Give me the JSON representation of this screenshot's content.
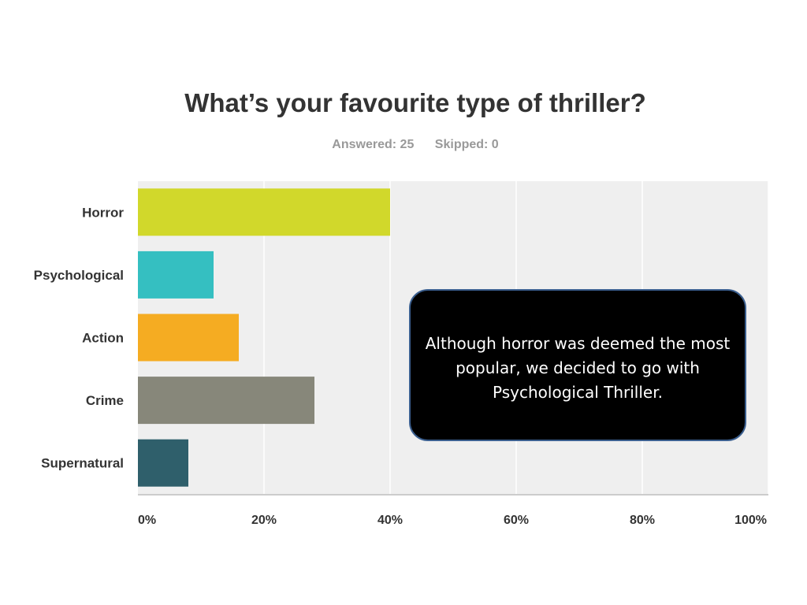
{
  "chart_data": {
    "type": "bar",
    "orientation": "horizontal",
    "title": "What’s your favourite type of thriller?",
    "subtitle": {
      "answered": "Answered: 25",
      "skipped": "Skipped: 0"
    },
    "categories": [
      "Horror",
      "Psychological",
      "Action",
      "Crime",
      "Supernatural"
    ],
    "values": [
      40,
      12,
      16,
      28,
      8
    ],
    "value_unit": "%",
    "xlim": [
      0,
      100
    ],
    "ticks": [
      0,
      20,
      40,
      60,
      80,
      100
    ],
    "tick_labels": [
      "0%",
      "20%",
      "40%",
      "60%",
      "80%",
      "100%"
    ],
    "grid": true,
    "colors": [
      "#d1d82b",
      "#35bfc1",
      "#f5ac22",
      "#87877a",
      "#2f5f6b"
    ],
    "background": "#efefef"
  },
  "callout": {
    "text": "Although horror was deemed the most popular, we decided to go with Psychological Thriller."
  }
}
